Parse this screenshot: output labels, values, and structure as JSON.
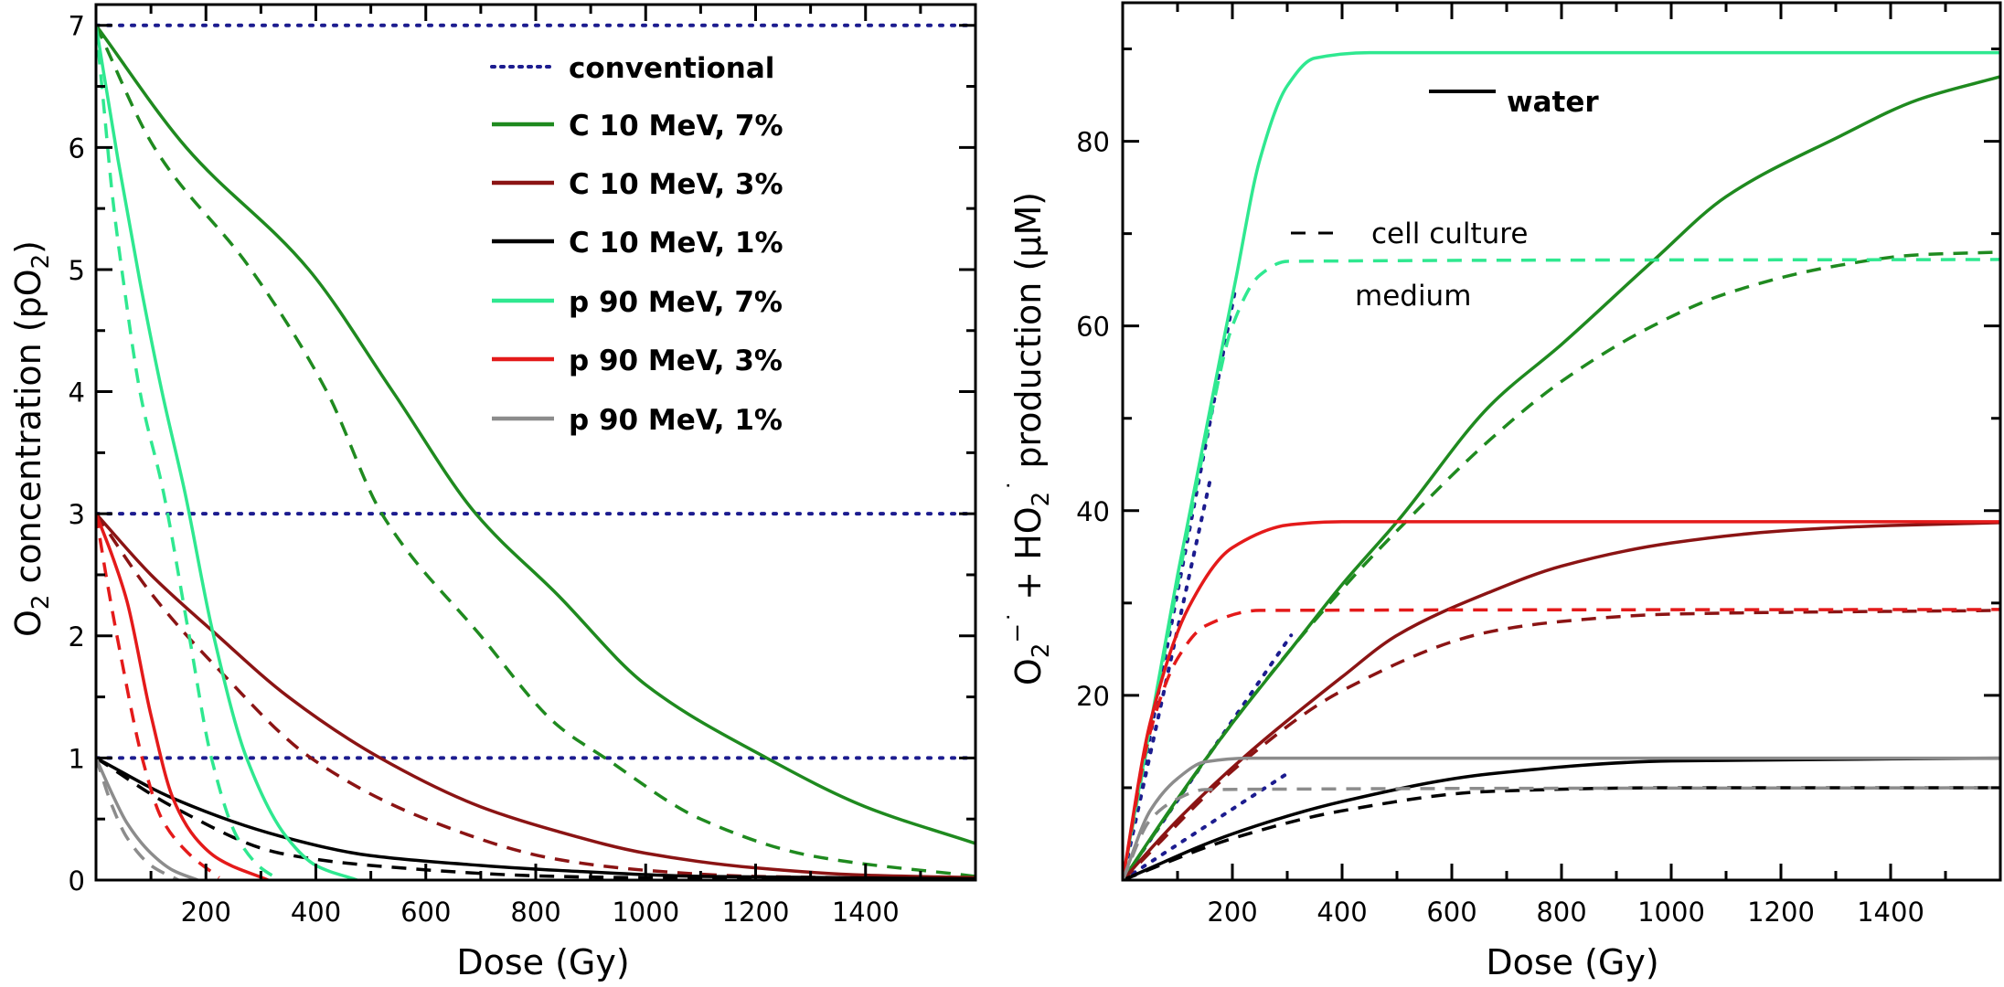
{
  "colors": {
    "conventional": "#1c1c8f",
    "c7": "#1f8a1f",
    "c3": "#8b1414",
    "c1": "#000000",
    "p7": "#2fe890",
    "p3": "#e41a1a",
    "p1": "#8c8c8c",
    "axis": "#000000"
  },
  "legend": [
    {
      "label": "conventional",
      "color_key": "conventional",
      "style": "dotted"
    },
    {
      "label": "C 10 MeV, 7%",
      "color_key": "c7",
      "style": "solid"
    },
    {
      "label": "C 10 MeV, 3%",
      "color_key": "c3",
      "style": "solid"
    },
    {
      "label": "C 10 MeV, 1%",
      "color_key": "c1",
      "style": "solid"
    },
    {
      "label": "p 90 MeV, 7%",
      "color_key": "p7",
      "style": "solid"
    },
    {
      "label": "p 90 MeV, 3%",
      "color_key": "p3",
      "style": "solid"
    },
    {
      "label": "p 90 MeV, 1%",
      "color_key": "p1",
      "style": "solid"
    }
  ],
  "annotations": {
    "water": "water",
    "cell_culture": "cell culture",
    "medium": "medium"
  },
  "chart_data": [
    {
      "type": "line",
      "title": "",
      "xlabel": "Dose (Gy)",
      "ylabel_parts": {
        "a": "O",
        "b": "2",
        "c": " concentration  (pO",
        "d": "2",
        "e": ")"
      },
      "xlim": [
        0,
        1600
      ],
      "ylim": [
        0,
        7.17
      ],
      "xticks": [
        200,
        400,
        600,
        800,
        1000,
        1200,
        1400
      ],
      "xtick_labels": [
        "200",
        "400",
        "600",
        "800",
        "1000",
        "1200",
        "1400"
      ],
      "yticks": [
        0,
        1,
        2,
        3,
        4,
        5,
        6,
        7
      ],
      "ytick_labels": [
        "0",
        "1",
        "2",
        "3",
        "4",
        "5",
        "6",
        "7"
      ],
      "legend_position": "top-right",
      "series": [
        {
          "ref": 0,
          "color_key": "conventional",
          "style": "dotted",
          "x": [
            0,
            1600
          ],
          "y": [
            7,
            7
          ]
        },
        {
          "ref": 0,
          "color_key": "conventional",
          "style": "dotted",
          "x": [
            0,
            1600
          ],
          "y": [
            3,
            3
          ]
        },
        {
          "ref": 0,
          "color_key": "conventional",
          "style": "dotted",
          "x": [
            0,
            1600
          ],
          "y": [
            1,
            1
          ]
        },
        {
          "ref": 1,
          "color_key": "c7",
          "style": "solid",
          "x": [
            0,
            164,
            387,
            540,
            691,
            839,
            1000,
            1220,
            1400,
            1600
          ],
          "y": [
            7,
            6,
            5,
            4,
            3,
            2.34,
            1.6,
            1.0,
            0.6,
            0.3
          ]
        },
        {
          "ref": 1,
          "color_key": "c7",
          "style": "dashed",
          "x": [
            0,
            106,
            282,
            420,
            520,
            700,
            839,
            926,
            1100,
            1300,
            1600
          ],
          "y": [
            7,
            6,
            5,
            4,
            3,
            2,
            1.27,
            1.0,
            0.5,
            0.2,
            0.03
          ]
        },
        {
          "ref": 2,
          "color_key": "c3",
          "style": "solid",
          "x": [
            0,
            100,
            212,
            350,
            517,
            700,
            839,
            1000,
            1200,
            1400,
            1600
          ],
          "y": [
            3,
            2.5,
            2.04,
            1.5,
            1.0,
            0.6,
            0.4,
            0.22,
            0.1,
            0.04,
            0.02
          ]
        },
        {
          "ref": 2,
          "color_key": "c3",
          "style": "dashed",
          "x": [
            0,
            100,
            224,
            391,
            600,
            839,
            1000,
            1200,
            1600
          ],
          "y": [
            3,
            2.35,
            1.72,
            1.0,
            0.5,
            0.17,
            0.08,
            0.03,
            0.01
          ]
        },
        {
          "ref": 3,
          "color_key": "c1",
          "style": "solid",
          "x": [
            0,
            140,
            335,
            500,
            700,
            839,
            1100,
            1600
          ],
          "y": [
            1,
            0.67,
            0.36,
            0.2,
            0.12,
            0.08,
            0.03,
            0.01
          ]
        },
        {
          "ref": 3,
          "color_key": "c1",
          "style": "dashed",
          "x": [
            0,
            140,
            335,
            500,
            839,
            1200,
            1600
          ],
          "y": [
            1,
            0.6,
            0.22,
            0.12,
            0.03,
            0.01,
            0.0
          ]
        },
        {
          "ref": 4,
          "color_key": "p7",
          "style": "solid",
          "x": [
            0,
            40,
            80,
            120,
            162,
            212,
            274,
            347,
            400,
            475
          ],
          "y": [
            7,
            5.9,
            4.9,
            4.0,
            3.17,
            2.04,
            1.0,
            0.35,
            0.12,
            0
          ]
        },
        {
          "ref": 4,
          "color_key": "p7",
          "style": "dashed",
          "x": [
            0,
            15,
            30,
            50,
            80,
            123,
            168,
            210,
            257,
            300,
            335
          ],
          "y": [
            7,
            6.3,
            5.6,
            4.9,
            4.0,
            3.17,
            2.04,
            1.0,
            0.35,
            0.1,
            0
          ]
        },
        {
          "ref": 5,
          "color_key": "p3",
          "style": "solid",
          "x": [
            0,
            30,
            56,
            100,
            140,
            180,
            224,
            313
          ],
          "y": [
            3,
            2.65,
            2.29,
            1.35,
            0.67,
            0.35,
            0.17,
            0
          ]
        },
        {
          "ref": 5,
          "color_key": "p3",
          "style": "dashed",
          "x": [
            0,
            20,
            45,
            84,
            120,
            168,
            224
          ],
          "y": [
            3,
            2.45,
            1.84,
            1.0,
            0.5,
            0.22,
            0.02
          ]
        },
        {
          "ref": 6,
          "color_key": "p1",
          "style": "solid",
          "x": [
            0,
            30,
            56,
            100,
            140,
            185
          ],
          "y": [
            1,
            0.7,
            0.47,
            0.22,
            0.08,
            0
          ]
        },
        {
          "ref": 6,
          "color_key": "p1",
          "style": "dashed",
          "x": [
            0,
            30,
            56,
            100,
            150
          ],
          "y": [
            1,
            0.6,
            0.35,
            0.12,
            0
          ]
        }
      ]
    },
    {
      "type": "line",
      "title": "",
      "xlabel": "Dose (Gy)",
      "ylabel_parts": {
        "a": "O",
        "b": "2",
        "c": "−˙",
        "d": " + HO",
        "e": "2",
        "f": "˙",
        "g": " production  (µM)"
      },
      "xlim": [
        0,
        1600
      ],
      "ylim": [
        0,
        95
      ],
      "xticks": [
        200,
        400,
        600,
        800,
        1000,
        1200,
        1400
      ],
      "xtick_labels": [
        "200",
        "400",
        "600",
        "800",
        "1000",
        "1200",
        "1400"
      ],
      "yticks": [
        20,
        40,
        60,
        80
      ],
      "ytick_labels": [
        "20",
        "40",
        "60",
        "80"
      ],
      "series": [
        {
          "ref": 0,
          "color_key": "conventional",
          "style": "dotted",
          "x": [
            0,
            206
          ],
          "y": [
            0,
            64.2
          ]
        },
        {
          "ref": 0,
          "color_key": "conventional",
          "style": "dotted",
          "x": [
            0,
            159
          ],
          "y": [
            0,
            43.2
          ]
        },
        {
          "ref": 0,
          "color_key": "conventional",
          "style": "dotted",
          "x": [
            0,
            307
          ],
          "y": [
            0,
            26.5
          ]
        },
        {
          "ref": 0,
          "color_key": "conventional",
          "style": "dotted",
          "x": [
            0,
            307
          ],
          "y": [
            0,
            11.8
          ]
        },
        {
          "ref": 1,
          "color_key": "c7",
          "style": "solid",
          "x": [
            0,
            100,
            200,
            300,
            400,
            503,
            670,
            800,
            966,
            1100,
            1306,
            1450,
            1600
          ],
          "y": [
            0,
            8.8,
            17,
            24.5,
            32,
            39,
            51.4,
            58,
            67,
            74,
            80.5,
            84.5,
            87
          ]
        },
        {
          "ref": 1,
          "color_key": "c7",
          "style": "dashed",
          "x": [
            0,
            200,
            400,
            503,
            670,
            800,
            966,
            1100,
            1300,
            1450,
            1600
          ],
          "y": [
            0,
            17,
            31.5,
            38,
            47.7,
            54,
            60,
            63.5,
            66.5,
            67.7,
            68
          ]
        },
        {
          "ref": 2,
          "color_key": "c3",
          "style": "solid",
          "x": [
            0,
            100,
            223,
            400,
            500,
            670,
            800,
            1000,
            1200,
            1400,
            1600
          ],
          "y": [
            0,
            6.5,
            13.4,
            22,
            26.5,
            31.2,
            34,
            36.5,
            37.8,
            38.4,
            38.7
          ]
        },
        {
          "ref": 2,
          "color_key": "c3",
          "style": "dashed",
          "x": [
            0,
            223,
            400,
            670,
            800,
            1000,
            1600
          ],
          "y": [
            0,
            13,
            20.5,
            26.9,
            28,
            28.8,
            29.2
          ]
        },
        {
          "ref": 3,
          "color_key": "c1",
          "style": "solid",
          "x": [
            0,
            200,
            400,
            670,
            1000,
            1600
          ],
          "y": [
            0,
            5,
            8.5,
            11.5,
            12.9,
            13.2
          ]
        },
        {
          "ref": 3,
          "color_key": "c1",
          "style": "dashed",
          "x": [
            0,
            200,
            400,
            670,
            1000,
            1600
          ],
          "y": [
            0,
            4.5,
            7.5,
            9.6,
            10,
            10
          ]
        },
        {
          "ref": 4,
          "color_key": "p7",
          "style": "solid",
          "x": [
            0,
            100,
            206,
            250,
            300,
            350,
            450,
            1600
          ],
          "y": [
            0,
            33,
            65,
            78,
            86,
            89,
            89.6,
            89.6
          ]
        },
        {
          "ref": 4,
          "color_key": "p7",
          "style": "dashed",
          "x": [
            0,
            100,
            160,
            200,
            250,
            300,
            1600
          ],
          "y": [
            0,
            32,
            50,
            60,
            65.5,
            67,
            67.2
          ]
        },
        {
          "ref": 5,
          "color_key": "p3",
          "style": "solid",
          "x": [
            0,
            50,
            120,
            200,
            307,
            400,
            1600
          ],
          "y": [
            0,
            17,
            29.5,
            36,
            38.5,
            38.8,
            38.8
          ]
        },
        {
          "ref": 5,
          "color_key": "p3",
          "style": "dashed",
          "x": [
            0,
            50,
            100,
            150,
            250,
            1600
          ],
          "y": [
            0,
            16,
            24,
            27.5,
            29.2,
            29.3
          ]
        },
        {
          "ref": 6,
          "color_key": "p1",
          "style": "solid",
          "x": [
            0,
            50,
            100,
            150,
            230,
            1600
          ],
          "y": [
            0,
            7.5,
            11,
            12.8,
            13.2,
            13.2
          ]
        },
        {
          "ref": 6,
          "color_key": "p1",
          "style": "dashed",
          "x": [
            0,
            50,
            100,
            150,
            1600
          ],
          "y": [
            0,
            6.5,
            8.8,
            9.8,
            10
          ]
        }
      ]
    }
  ]
}
